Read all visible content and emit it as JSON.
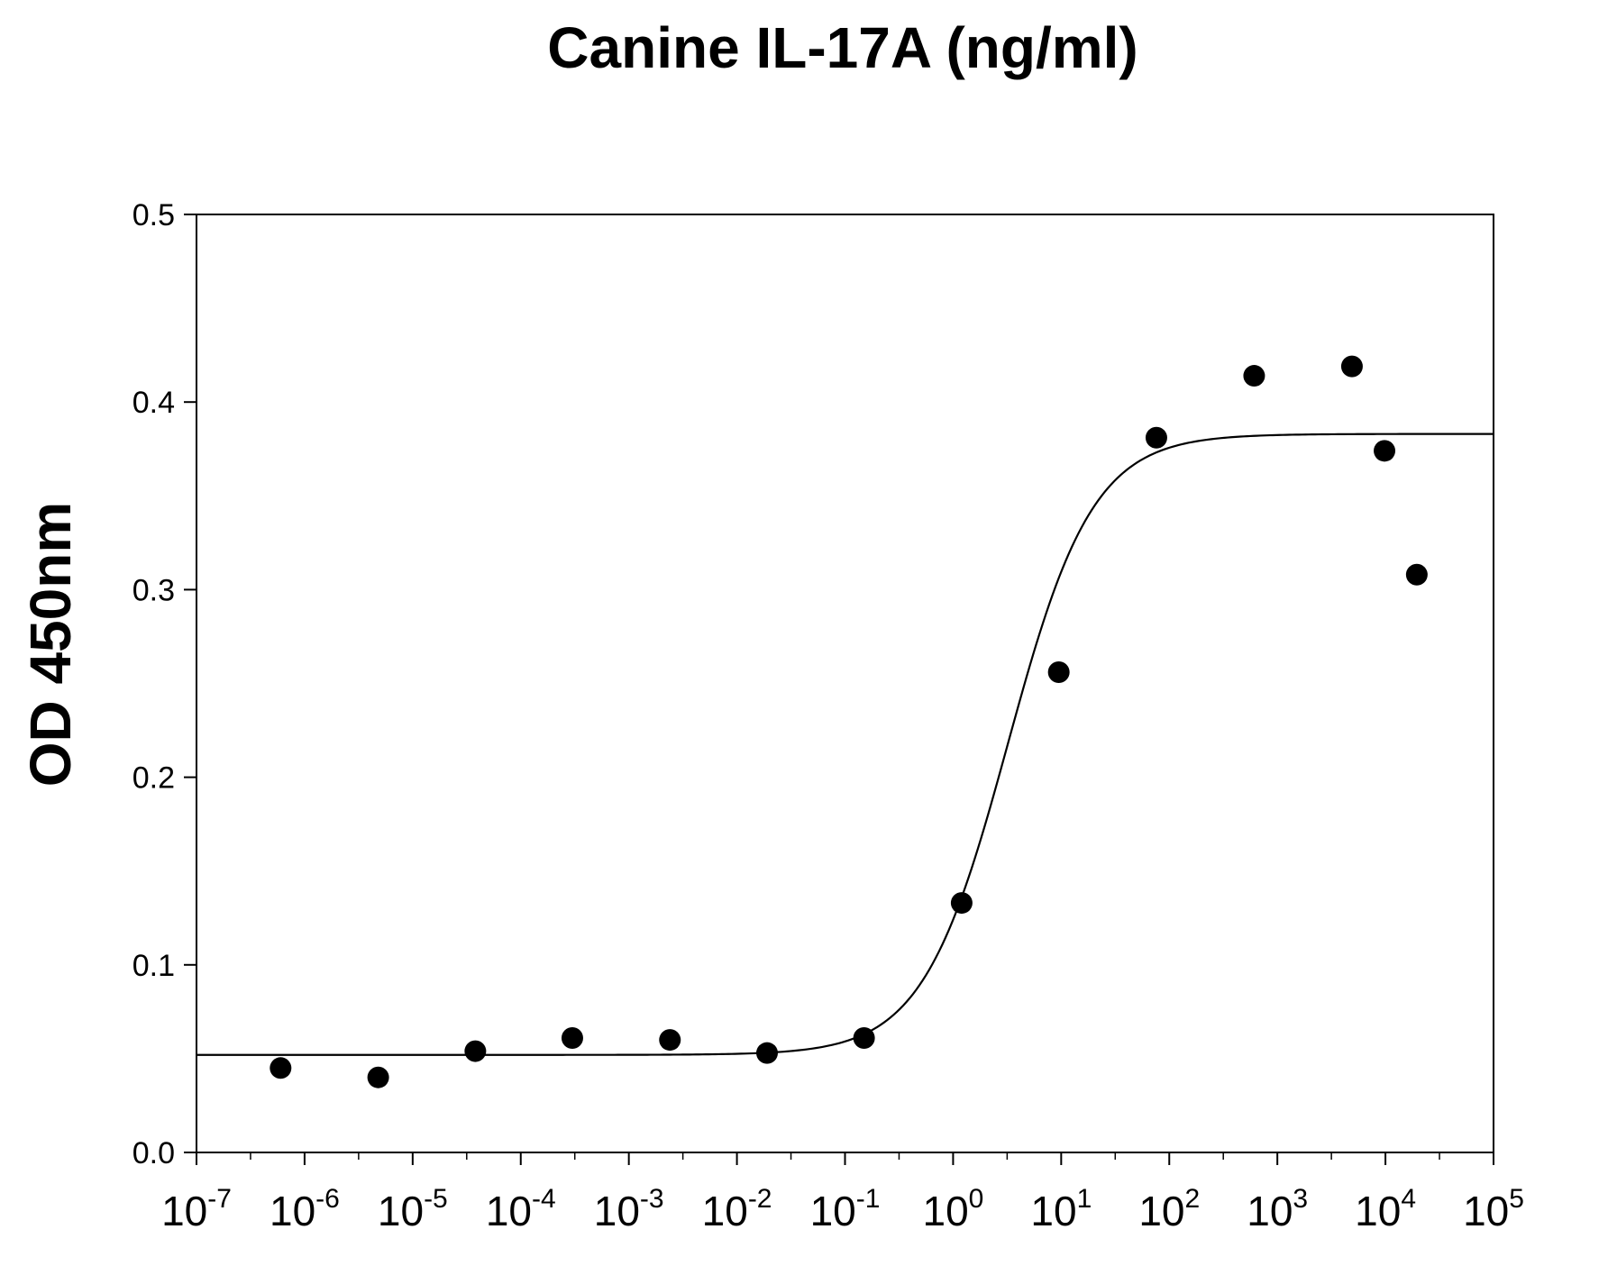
{
  "chart_data": {
    "type": "scatter",
    "title": "Canine IL-17A (ng/ml)",
    "xlabel": "",
    "ylabel": "OD 450nm",
    "x_scale": "log",
    "xlim": [
      1e-07,
      100000.0
    ],
    "ylim": [
      0.0,
      0.5
    ],
    "grid": false,
    "legend": "none",
    "x_ticks": [
      {
        "base": "10",
        "exp": "-7"
      },
      {
        "base": "10",
        "exp": "-6"
      },
      {
        "base": "10",
        "exp": "-5"
      },
      {
        "base": "10",
        "exp": "-4"
      },
      {
        "base": "10",
        "exp": "-3"
      },
      {
        "base": "10",
        "exp": "-2"
      },
      {
        "base": "10",
        "exp": "-1"
      },
      {
        "base": "10",
        "exp": "0"
      },
      {
        "base": "10",
        "exp": "1"
      },
      {
        "base": "10",
        "exp": "2"
      },
      {
        "base": "10",
        "exp": "3"
      },
      {
        "base": "10",
        "exp": "4"
      },
      {
        "base": "10",
        "exp": "5"
      }
    ],
    "y_ticks": [
      "0.0",
      "0.1",
      "0.2",
      "0.3",
      "0.4",
      "0.5"
    ],
    "series": [
      {
        "points": [
          {
            "x": 6e-07,
            "y": 0.045
          },
          {
            "x": 4.8e-06,
            "y": 0.04
          },
          {
            "x": 3.8e-05,
            "y": 0.054
          },
          {
            "x": 0.0003,
            "y": 0.061
          },
          {
            "x": 0.0024,
            "y": 0.06
          },
          {
            "x": 0.019,
            "y": 0.053
          },
          {
            "x": 0.15,
            "y": 0.061
          },
          {
            "x": 1.2,
            "y": 0.133
          },
          {
            "x": 9.5,
            "y": 0.256
          },
          {
            "x": 76,
            "y": 0.381
          },
          {
            "x": 610,
            "y": 0.414
          },
          {
            "x": 4900,
            "y": 0.419
          },
          {
            "x": 9800,
            "y": 0.374
          },
          {
            "x": 19500,
            "y": 0.308
          }
        ]
      }
    ],
    "fit_curve": {
      "model": "4PL",
      "bottom": 0.052,
      "top": 0.383,
      "ec50": 3.2,
      "hill": 1.1
    },
    "colors": {
      "points": "#000000",
      "line": "#000000",
      "axes": "#000000"
    }
  }
}
